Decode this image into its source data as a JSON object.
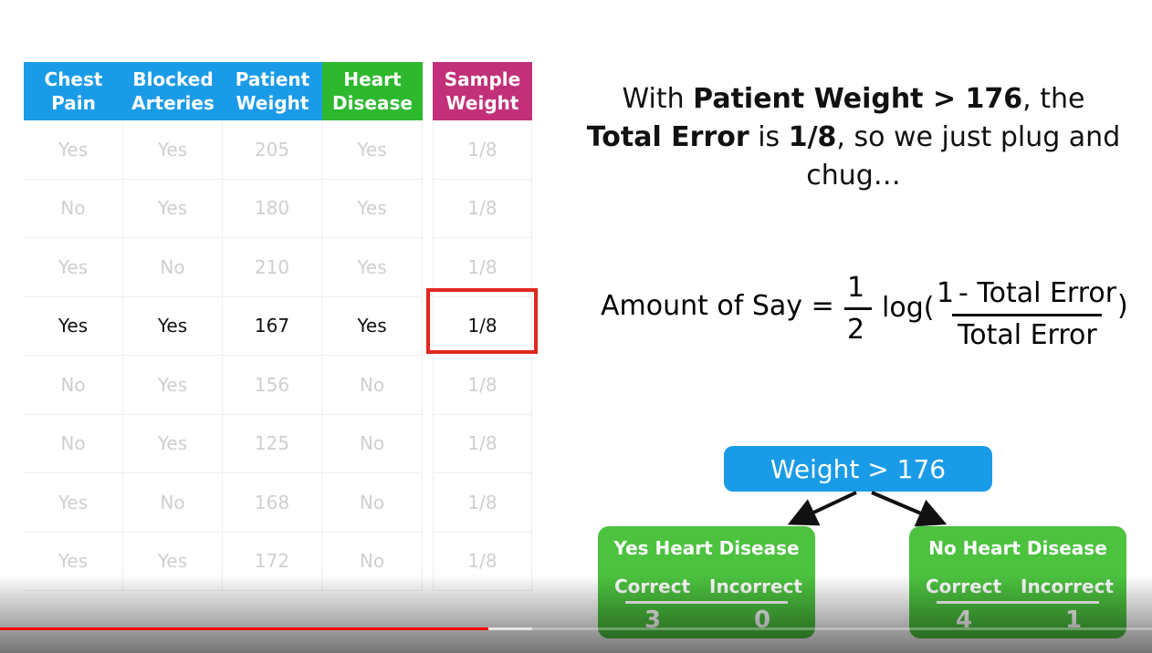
{
  "table": {
    "headers": [
      "Chest Pain",
      "Blocked Arteries",
      "Patient Weight",
      "Heart Disease"
    ],
    "rows": [
      [
        "Yes",
        "Yes",
        "205",
        "Yes"
      ],
      [
        "No",
        "Yes",
        "180",
        "Yes"
      ],
      [
        "Yes",
        "No",
        "210",
        "Yes"
      ],
      [
        "Yes",
        "Yes",
        "167",
        "Yes"
      ],
      [
        "No",
        "Yes",
        "156",
        "No"
      ],
      [
        "No",
        "Yes",
        "125",
        "No"
      ],
      [
        "Yes",
        "No",
        "168",
        "No"
      ],
      [
        "Yes",
        "Yes",
        "172",
        "No"
      ]
    ],
    "highlight_row": 3
  },
  "sample_weight": {
    "header": "Sample Weight",
    "values": [
      "1/8",
      "1/8",
      "1/8",
      "1/8",
      "1/8",
      "1/8",
      "1/8",
      "1/8"
    ]
  },
  "statement": [
    {
      "text": "With ",
      "bold": false
    },
    {
      "text": "Patient Weight > 176",
      "bold": true
    },
    {
      "text": ", the ",
      "bold": false
    },
    {
      "text": "Total Error",
      "bold": true
    },
    {
      "text": " is ",
      "bold": false
    },
    {
      "text": "1/8",
      "bold": true
    },
    {
      "text": ", so we just plug and chug…",
      "bold": false
    }
  ],
  "formula": {
    "lhs": "Amount of Say =",
    "half_num": "1",
    "half_den": "2",
    "log": "log(",
    "one": "1",
    "num": "- Total Error",
    "den": "Total Error",
    "close": ")"
  },
  "tree": {
    "root": "Weight > 176",
    "leaves": [
      {
        "title": "Yes Heart Disease",
        "labels": [
          "Correct",
          "Incorrect"
        ],
        "values": [
          3,
          0
        ]
      },
      {
        "title": "No Heart Disease",
        "labels": [
          "Correct",
          "Incorrect"
        ],
        "values": [
          4,
          1
        ]
      }
    ]
  }
}
